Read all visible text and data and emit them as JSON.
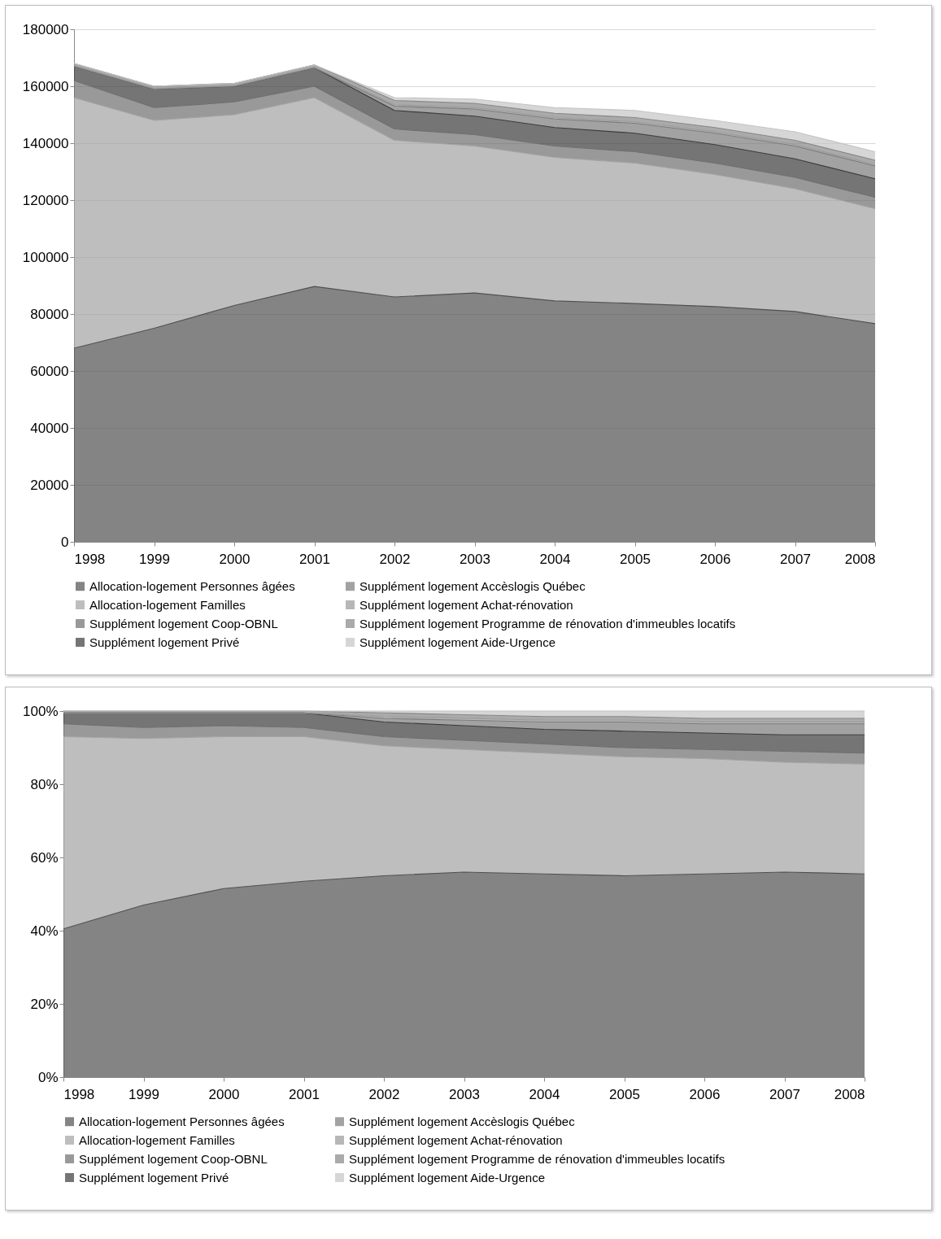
{
  "chart_data": [
    {
      "type": "area",
      "stacked": true,
      "categories": [
        "1998",
        "1999",
        "2000",
        "2001",
        "2002",
        "2003",
        "2004",
        "2005",
        "2006",
        "2007",
        "2008"
      ],
      "ylim": [
        0,
        180000
      ],
      "yticks": [
        0,
        20000,
        40000,
        60000,
        80000,
        100000,
        120000,
        140000,
        160000,
        180000
      ],
      "grid": "y",
      "legend": "bottom",
      "series": [
        {
          "name": "Allocation-logement Personnes âgées",
          "color": "#505050",
          "values": [
            68000,
            75000,
            83000,
            89700,
            86000,
            87400,
            84600,
            83700,
            82600,
            80900,
            76600
          ]
        },
        {
          "name": "Allocation-logement Familles",
          "color": "#a3a3a3",
          "values": [
            88000,
            73000,
            67000,
            66300,
            55000,
            51600,
            50400,
            49300,
            46400,
            43100,
            40400
          ]
        },
        {
          "name": "Supplément logement Coop-OBNL",
          "color": "#6e6e6e",
          "values": [
            6000,
            4500,
            4500,
            4000,
            4000,
            4000,
            4000,
            4000,
            4000,
            4000,
            4000
          ]
        },
        {
          "name": "Supplément logement Privé",
          "color": "#3a3a3a",
          "values": [
            5000,
            6500,
            5500,
            6500,
            6500,
            6500,
            6500,
            6500,
            6500,
            6500,
            6500
          ]
        },
        {
          "name": "Supplément logement Accèslogis Québec",
          "color": "#7a7a7a",
          "values": [
            0,
            0,
            0,
            0,
            1500,
            2500,
            3000,
            3500,
            4000,
            4500,
            4500
          ]
        },
        {
          "name": "Supplément logement Achat-rénovation",
          "color": "#999999",
          "values": [
            200,
            200,
            200,
            200,
            500,
            500,
            500,
            500,
            500,
            500,
            500
          ]
        },
        {
          "name": "Supplément logement Programme de rénovation d'immeubles locatifs",
          "color": "#868686",
          "values": [
            800,
            800,
            800,
            800,
            1500,
            1500,
            1500,
            1500,
            1500,
            1500,
            1500
          ]
        },
        {
          "name": "Supplément logement Aide-Urgence",
          "color": "#c4c4c4",
          "values": [
            0,
            0,
            0,
            0,
            1000,
            1500,
            2000,
            2500,
            2500,
            3000,
            3000
          ]
        }
      ]
    },
    {
      "type": "area",
      "stacked": true,
      "categories": [
        "1998",
        "1999",
        "2000",
        "2001",
        "2002",
        "2003",
        "2004",
        "2005",
        "2006",
        "2007",
        "2008"
      ],
      "ylim": [
        0,
        100
      ],
      "yticks": [
        {
          "value": 0,
          "label": "0%"
        },
        {
          "value": 20,
          "label": "20%"
        },
        {
          "value": 40,
          "label": "40%"
        },
        {
          "value": 60,
          "label": "60%"
        },
        {
          "value": 80,
          "label": "80%"
        },
        {
          "value": 100,
          "label": "100%"
        }
      ],
      "legend": "bottom",
      "series": [
        {
          "name": "Allocation-logement Personnes âgées",
          "color": "#505050",
          "values": [
            40.5,
            47,
            51.5,
            53.5,
            55,
            56,
            55.5,
            55,
            55.5,
            56,
            55.5
          ]
        },
        {
          "name": "Allocation-logement Familles",
          "color": "#a3a3a3",
          "values": [
            52.5,
            45.5,
            41.5,
            39.5,
            35.5,
            33.5,
            33,
            32.5,
            31.5,
            30,
            30
          ]
        },
        {
          "name": "Supplément logement Coop-OBNL",
          "color": "#6e6e6e",
          "values": [
            3.5,
            3,
            3,
            2.5,
            2.5,
            2.5,
            2.5,
            2.5,
            2.5,
            3,
            3
          ]
        },
        {
          "name": "Supplément logement Privé",
          "color": "#3a3a3a",
          "values": [
            3,
            4,
            3.5,
            4,
            4,
            4,
            4,
            4.5,
            4.5,
            4.5,
            5
          ]
        },
        {
          "name": "Supplément logement Accèslogis Québec",
          "color": "#7a7a7a",
          "values": [
            0,
            0,
            0,
            0,
            1,
            1.5,
            2,
            2.5,
            2.5,
            3,
            3
          ]
        },
        {
          "name": "Supplément logement Achat-rénovation",
          "color": "#999999",
          "values": [
            0,
            0,
            0,
            0,
            0.5,
            0.5,
            0.5,
            0.5,
            0.5,
            0.5,
            0.5
          ]
        },
        {
          "name": "Supplément logement Programme de rénovation d'immeubles locatifs",
          "color": "#868686",
          "values": [
            0.5,
            0.5,
            0.5,
            0.5,
            1,
            1,
            1,
            1,
            1,
            1,
            1
          ]
        },
        {
          "name": "Supplément logement Aide-Urgence",
          "color": "#c4c4c4",
          "values": [
            0,
            0,
            0,
            0,
            0.5,
            1,
            1.5,
            1.5,
            2,
            2,
            2
          ]
        }
      ]
    }
  ]
}
